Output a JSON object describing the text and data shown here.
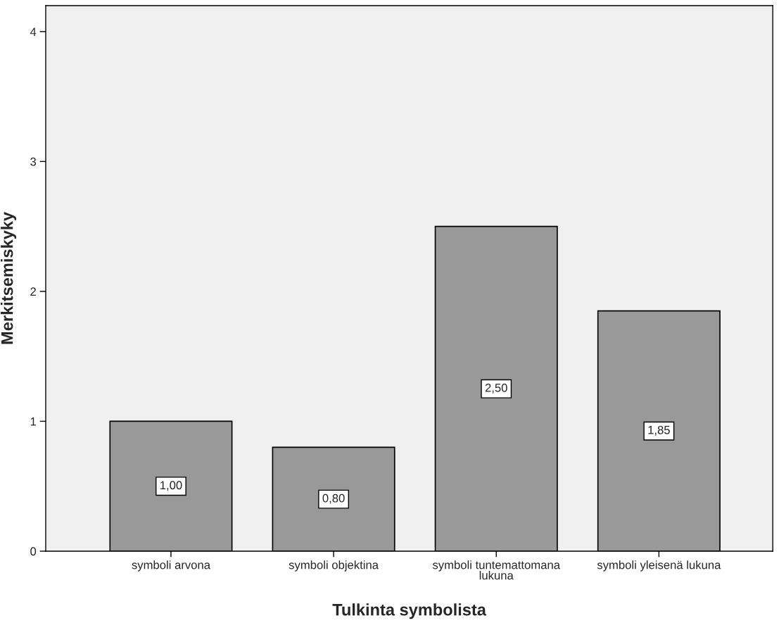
{
  "chart_data": {
    "type": "bar",
    "xlabel": "Tulkinta symbolista",
    "ylabel": "Merkitsemiskyky",
    "categories": [
      "symboli arvona",
      "symboli objektina",
      "symboli tuntemattomana\nlukuna",
      "symboli yleisenä lukuna"
    ],
    "values": [
      1.0,
      0.8,
      2.5,
      1.85
    ],
    "value_labels": [
      "1,00",
      "0,80",
      "2,50",
      "1,85"
    ],
    "color": "#999999",
    "ylim": [
      0,
      4.2
    ],
    "yticks": [
      0,
      1,
      2,
      3,
      4
    ],
    "grid": false,
    "legend": false
  }
}
